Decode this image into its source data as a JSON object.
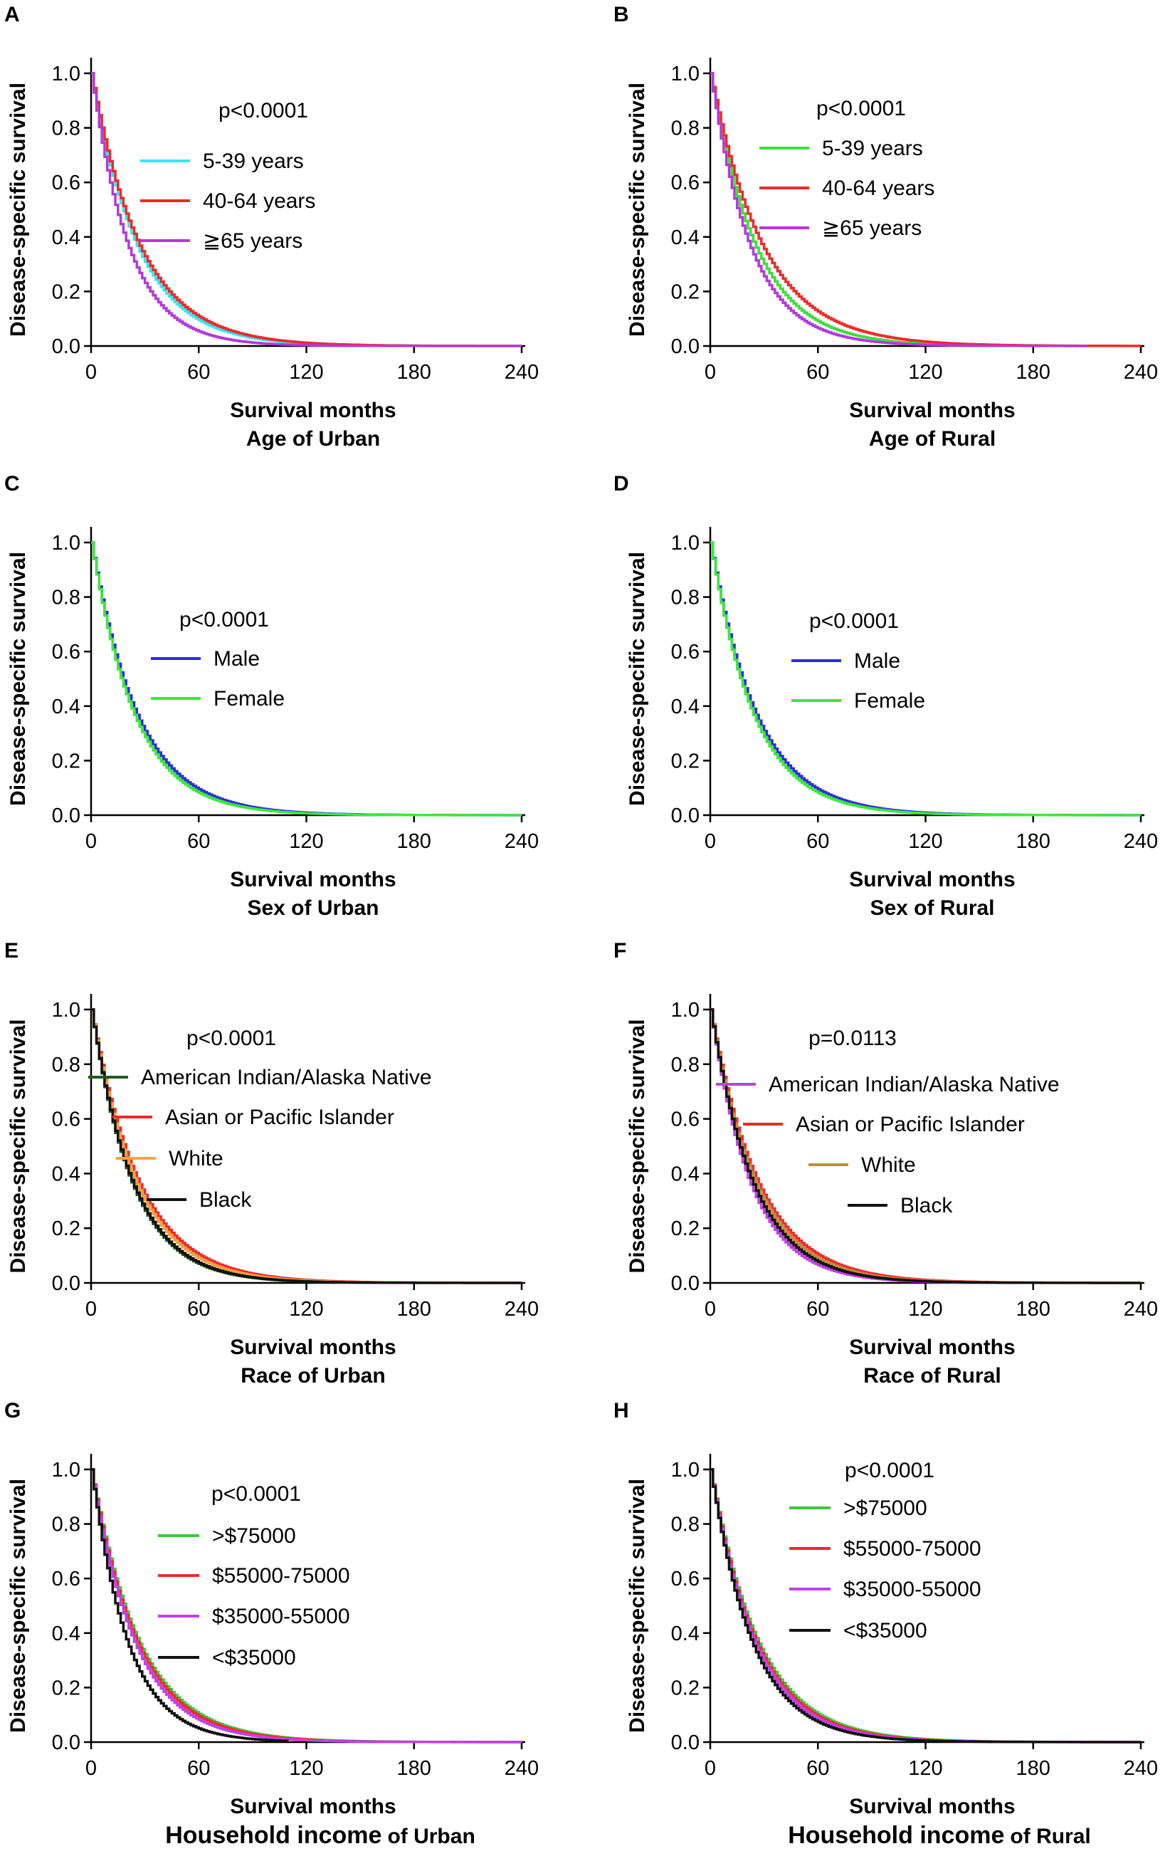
{
  "chart_data": [
    {
      "panel": "A",
      "type": "line",
      "xlabel": "Survival months",
      "subtitle": "Age of Urban",
      "ylabel": "Disease-specific survival",
      "xlim": [
        0,
        240
      ],
      "ylim": [
        0,
        1.0
      ],
      "xticks": [
        "0",
        "60",
        "120",
        "180",
        "240"
      ],
      "yticks": [
        "0.0",
        "0.2",
        "0.4",
        "0.6",
        "0.8",
        "1.0"
      ],
      "pvalue": "p<0.0001",
      "series": [
        {
          "name": "5-39 years",
          "color": "#33e8f0",
          "tau": 25.5,
          "end": 200
        },
        {
          "name": "40-64 years",
          "color": "#ee2a2a",
          "tau": 27,
          "end": 240
        },
        {
          "name": "≧65 years",
          "color": "#b23ad9",
          "tau": 20.5,
          "end": 240
        }
      ]
    },
    {
      "panel": "B",
      "type": "line",
      "xlabel": "Survival months",
      "subtitle": "Age of Rural",
      "ylabel": "Disease-specific survival",
      "xlim": [
        0,
        240
      ],
      "ylim": [
        0,
        1.0
      ],
      "xticks": [
        "0",
        "60",
        "120",
        "180",
        "240"
      ],
      "yticks": [
        "0.0",
        "0.2",
        "0.4",
        "0.6",
        "0.8",
        "1.0"
      ],
      "pvalue": "p<0.0001",
      "series": [
        {
          "name": "5-39 years",
          "color": "#3cde3c",
          "tau": 25,
          "end": 180
        },
        {
          "name": "40-64 years",
          "color": "#ee2a2a",
          "tau": 29,
          "end": 240
        },
        {
          "name": "≧65 years",
          "color": "#b23ad9",
          "tau": 22,
          "end": 210
        }
      ]
    },
    {
      "panel": "C",
      "type": "line",
      "xlabel": "Survival months",
      "subtitle": "Sex of Urban",
      "ylabel": "Disease-specific survival",
      "xlim": [
        0,
        240
      ],
      "ylim": [
        0,
        1.0
      ],
      "xticks": [
        "0",
        "60",
        "120",
        "180",
        "240"
      ],
      "yticks": [
        "0.0",
        "0.2",
        "0.4",
        "0.6",
        "0.8",
        "1.0"
      ],
      "pvalue": "p<0.0001",
      "series": [
        {
          "name": "Male",
          "color": "#2c2ce0",
          "tau": 25.5,
          "end": 240
        },
        {
          "name": "Female",
          "color": "#3ce83c",
          "tau": 24,
          "end": 240
        }
      ]
    },
    {
      "panel": "D",
      "type": "line",
      "xlabel": "Survival months",
      "subtitle": "Sex of Rural",
      "ylabel": "Disease-specific survival",
      "xlim": [
        0,
        240
      ],
      "ylim": [
        0,
        1.0
      ],
      "xticks": [
        "0",
        "60",
        "120",
        "180",
        "240"
      ],
      "yticks": [
        "0.0",
        "0.2",
        "0.4",
        "0.6",
        "0.8",
        "1.0"
      ],
      "pvalue": "p<0.0001",
      "series": [
        {
          "name": "Male",
          "color": "#2c2ce0",
          "tau": 25.5,
          "end": 240
        },
        {
          "name": "Female",
          "color": "#3ce83c",
          "tau": 24,
          "end": 240
        }
      ]
    },
    {
      "panel": "E",
      "type": "line",
      "xlabel": "Survival months",
      "subtitle": "Race of Urban",
      "ylabel": "Disease-specific survival",
      "xlim": [
        0,
        240
      ],
      "ylim": [
        0,
        1.0
      ],
      "xticks": [
        "0",
        "60",
        "120",
        "180",
        "240"
      ],
      "yticks": [
        "0.0",
        "0.2",
        "0.4",
        "0.6",
        "0.8",
        "1.0"
      ],
      "pvalue": "p<0.0001",
      "series": [
        {
          "name": "American Indian/Alaska Native",
          "color": "#1e5a1e",
          "tau": 22.5,
          "end": 200
        },
        {
          "name": "Asian or Pacific Islander",
          "color": "#ee2a2a",
          "tau": 26.5,
          "end": 240
        },
        {
          "name": "White",
          "color": "#f5a040",
          "tau": 25,
          "end": 240
        },
        {
          "name": "Black",
          "color": "#111111",
          "tau": 23,
          "end": 240
        }
      ]
    },
    {
      "panel": "F",
      "type": "line",
      "xlabel": "Survival months",
      "subtitle": "Race of Rural",
      "ylabel": "Disease-specific survival",
      "xlim": [
        0,
        240
      ],
      "ylim": [
        0,
        1.0
      ],
      "xticks": [
        "0",
        "60",
        "120",
        "180",
        "240"
      ],
      "yticks": [
        "0.0",
        "0.2",
        "0.4",
        "0.6",
        "0.8",
        "1.0"
      ],
      "pvalue": "p=0.0113",
      "series": [
        {
          "name": "American Indian/Alaska Native",
          "color": "#c040e8",
          "tau": 22,
          "end": 150
        },
        {
          "name": "Asian or Pacific Islander",
          "color": "#ee2a2a",
          "tau": 26.5,
          "end": 200
        },
        {
          "name": "White",
          "color": "#c88a3c",
          "tau": 25,
          "end": 240
        },
        {
          "name": "Black",
          "color": "#111111",
          "tau": 23.5,
          "end": 240
        }
      ]
    },
    {
      "panel": "G",
      "type": "line",
      "xlabel": "Survival months",
      "subtitle": "Household income",
      "subtitle_suffix": "of Urban",
      "ylabel": "Disease-specific survival",
      "xlim": [
        0,
        240
      ],
      "ylim": [
        0,
        1.0
      ],
      "xticks": [
        "0",
        "60",
        "120",
        "180",
        "240"
      ],
      "yticks": [
        "0.0",
        "0.2",
        "0.4",
        "0.6",
        "0.8",
        "1.0"
      ],
      "pvalue": "p<0.0001",
      "series": [
        {
          "name": ">$75000",
          "color": "#3cc83c",
          "tau": 26.5,
          "end": 240
        },
        {
          "name": "$55000-75000",
          "color": "#ee2a2a",
          "tau": 25.5,
          "end": 240
        },
        {
          "name": "$35000-55000",
          "color": "#c040e8",
          "tau": 24,
          "end": 240
        },
        {
          "name": "<$35000",
          "color": "#111111",
          "tau": 20,
          "end": 110
        }
      ]
    },
    {
      "panel": "H",
      "type": "line",
      "xlabel": "Survival months",
      "subtitle": "Household income",
      "subtitle_suffix": "of Rural",
      "ylabel": "Disease-specific survival",
      "xlim": [
        0,
        240
      ],
      "ylim": [
        0,
        1.0
      ],
      "xticks": [
        "0",
        "60",
        "120",
        "180",
        "240"
      ],
      "yticks": [
        "0.0",
        "0.2",
        "0.4",
        "0.6",
        "0.8",
        "1.0"
      ],
      "pvalue": "p<0.0001",
      "series": [
        {
          "name": ">$75000",
          "color": "#3cc83c",
          "tau": 26.5,
          "end": 200
        },
        {
          "name": "$55000-75000",
          "color": "#ee2a2a",
          "tau": 25.5,
          "end": 240
        },
        {
          "name": "$35000-55000",
          "color": "#c040e8",
          "tau": 24.5,
          "end": 240
        },
        {
          "name": "<$35000",
          "color": "#111111",
          "tau": 23,
          "end": 240
        }
      ]
    }
  ]
}
